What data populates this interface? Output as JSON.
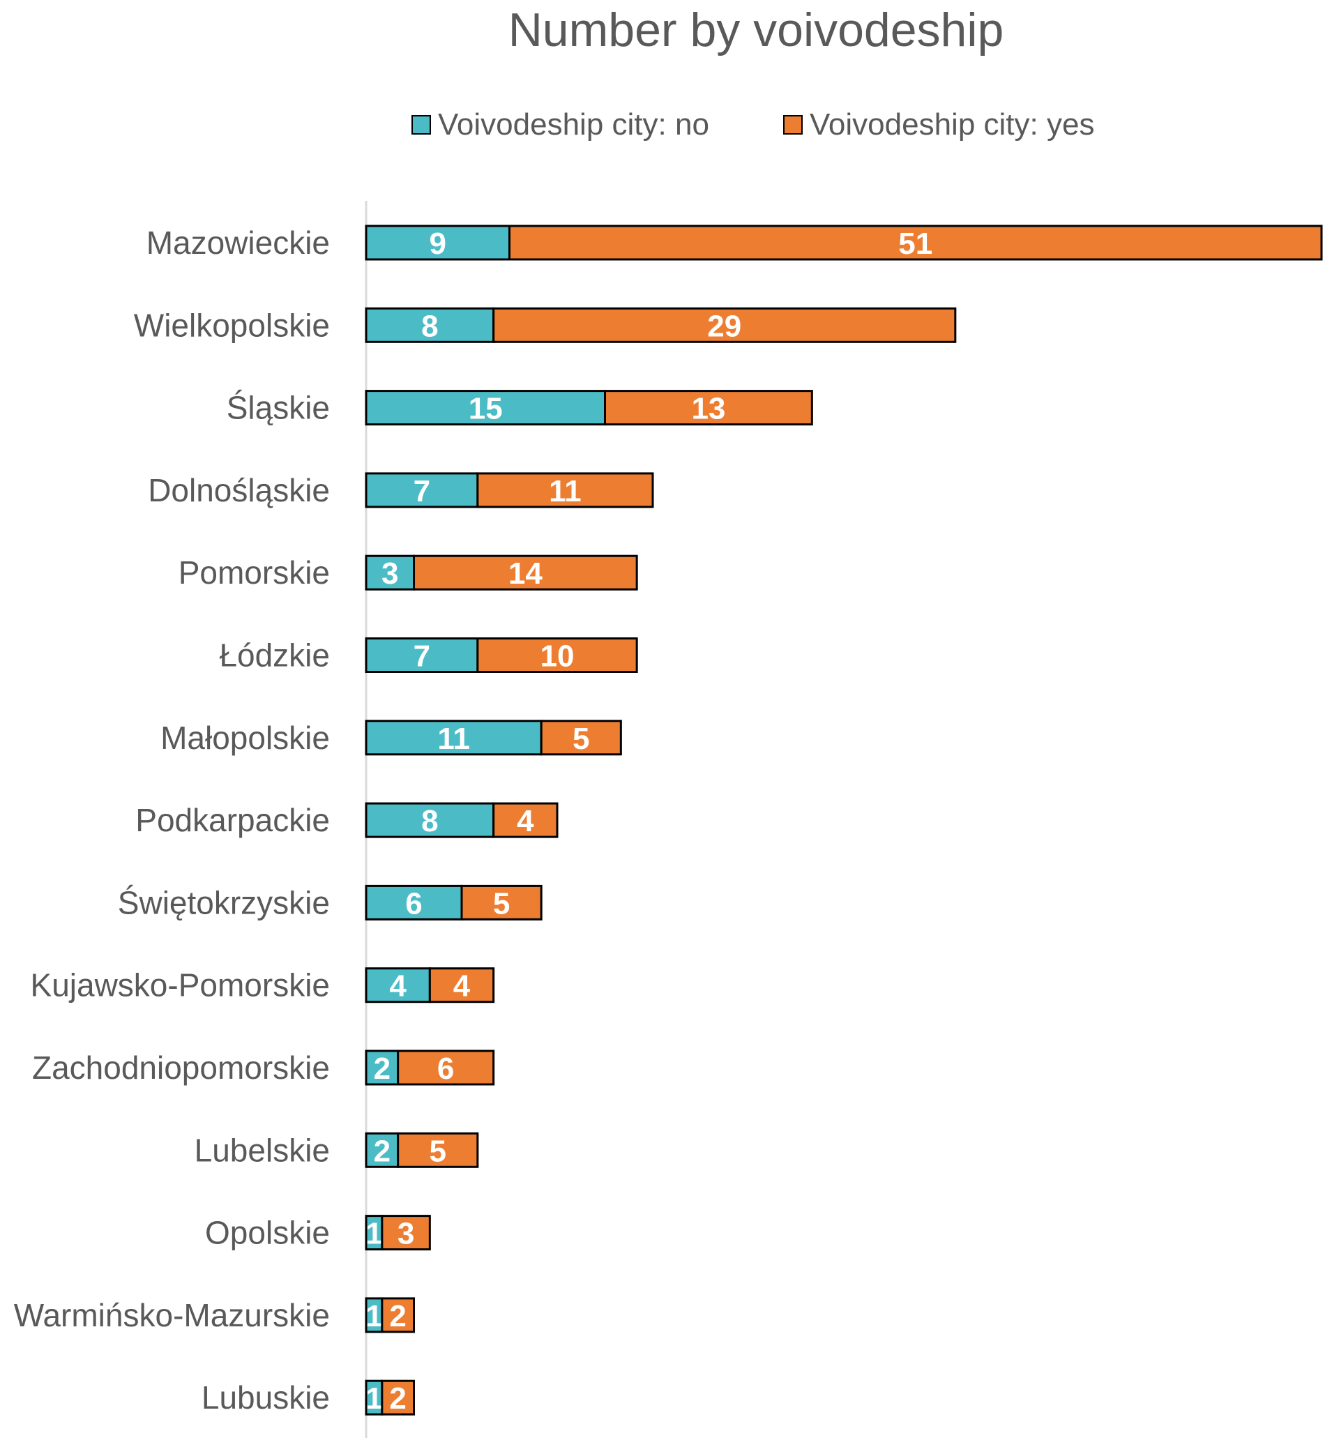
{
  "chart_data": {
    "type": "bar",
    "orientation": "horizontal",
    "stacked": true,
    "title": "Number by voivodeship",
    "xlabel": "",
    "ylabel": "",
    "xlim": [
      0,
      60
    ],
    "grid": false,
    "legend_position": "top",
    "categories": [
      "Mazowieckie",
      "Wielkopolskie",
      "Śląskie",
      "Dolnośląskie",
      "Pomorskie",
      "Łódzkie",
      "Małopolskie",
      "Podkarpackie",
      "Świętokrzyskie",
      "Kujawsko-Pomorskie",
      "Zachodniopomorskie",
      "Lubelskie",
      "Opolskie",
      "Warmińsko-Mazurskie",
      "Lubuskie"
    ],
    "series": [
      {
        "name": "Voivodeship city: no",
        "color": "#4BBCC6",
        "values": [
          9,
          8,
          15,
          7,
          3,
          7,
          11,
          8,
          6,
          4,
          2,
          2,
          1,
          1,
          1
        ]
      },
      {
        "name": "Voivodeship city: yes",
        "color": "#ED7D31",
        "values": [
          51,
          29,
          13,
          11,
          14,
          10,
          5,
          4,
          5,
          4,
          6,
          5,
          3,
          2,
          2
        ]
      }
    ]
  }
}
